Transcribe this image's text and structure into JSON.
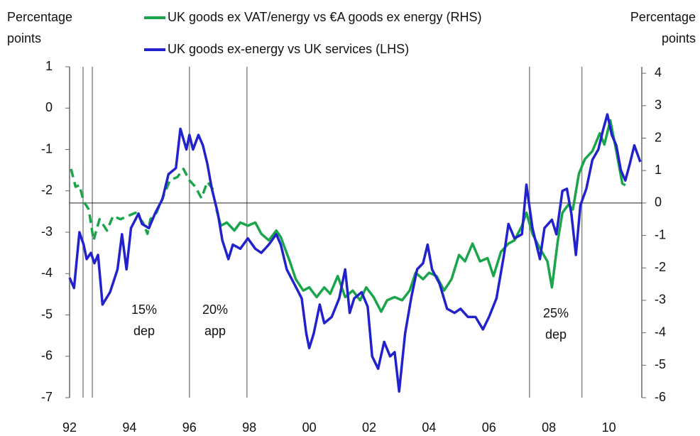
{
  "chart_data": {
    "type": "line",
    "ylabel": [
      "Percentage",
      "points"
    ],
    "y2label": [
      "Percentage",
      "points"
    ],
    "xlim": [
      1992,
      2011.1
    ],
    "xticks": [
      {
        "value": 1992,
        "label": "92"
      },
      {
        "value": 1994,
        "label": "94"
      },
      {
        "value": 1996,
        "label": "96"
      },
      {
        "value": 1998,
        "label": "98"
      },
      {
        "value": 2000,
        "label": "00"
      },
      {
        "value": 2002,
        "label": "02"
      },
      {
        "value": 2004,
        "label": "04"
      },
      {
        "value": 2006,
        "label": "06"
      },
      {
        "value": 2008,
        "label": "08"
      },
      {
        "value": 2010,
        "label": "10"
      }
    ],
    "ylim": [
      -7,
      1
    ],
    "yticks": [
      1,
      0,
      -1,
      -2,
      -3,
      -4,
      -5,
      -6,
      -7
    ],
    "y2lim": [
      -6,
      4.2
    ],
    "y2ticks": [
      4,
      3,
      2,
      1,
      0,
      -1,
      -2,
      -3,
      -4,
      -5,
      -6
    ],
    "vlines": [
      1992.45,
      1992.76,
      1996,
      1997.92,
      2007.35,
      2009.1
    ],
    "annotations": [
      [
        "15%",
        "dep"
      ],
      [
        "20%",
        "app"
      ],
      [
        "25%",
        "dep"
      ]
    ],
    "series": [
      {
        "name": "UK goods ex VAT/energy vs €A goods ex energy (RHS)",
        "color": "#1aa54b",
        "axis": "y2",
        "dashed_before": 1996.85,
        "x": [
          1992.05,
          1992.2,
          1992.33,
          1992.47,
          1992.64,
          1992.8,
          1993.0,
          1993.25,
          1993.45,
          1993.7,
          1993.95,
          1994.2,
          1994.45,
          1994.6,
          1994.7,
          1994.9,
          1995.15,
          1995.35,
          1995.6,
          1995.8,
          1996.0,
          1996.2,
          1996.4,
          1996.6,
          1996.8,
          1996.9,
          1997.05,
          1997.25,
          1997.5,
          1997.7,
          1997.95,
          1998.2,
          1998.4,
          1998.65,
          1998.9,
          1999.05,
          1999.35,
          1999.55,
          1999.8,
          2000.0,
          2000.25,
          2000.5,
          2000.7,
          2000.95,
          2001.2,
          2001.45,
          2001.7,
          2001.9,
          2002.15,
          2002.4,
          2002.6,
          2002.85,
          2003.1,
          2003.35,
          2003.55,
          2003.8,
          2004.0,
          2004.25,
          2004.5,
          2004.75,
          2005.0,
          2005.2,
          2005.45,
          2005.7,
          2005.95,
          2006.15,
          2006.4,
          2006.65,
          2006.85,
          2007.1,
          2007.25,
          2007.45,
          2007.7,
          2007.95,
          2008.1,
          2008.3,
          2008.45,
          2008.65,
          2008.8,
          2009.0,
          2009.2,
          2009.45,
          2009.7,
          2009.85,
          2010.05,
          2010.25,
          2010.45,
          2010.55
        ],
        "values": [
          1.05,
          0.5,
          0.55,
          0.05,
          -0.2,
          -1.15,
          -0.5,
          -0.85,
          -0.4,
          -0.5,
          -0.4,
          -0.3,
          -0.6,
          -0.95,
          -0.5,
          -0.3,
          0.25,
          0.7,
          0.8,
          1.05,
          0.7,
          0.5,
          0.15,
          0.65,
          0.4,
          -0.2,
          -0.7,
          -0.6,
          -0.85,
          -0.6,
          -0.7,
          -0.6,
          -0.95,
          -1.15,
          -0.85,
          -1.05,
          -1.8,
          -2.35,
          -2.7,
          -2.6,
          -2.9,
          -2.6,
          -2.8,
          -2.25,
          -2.9,
          -2.7,
          -3.0,
          -2.6,
          -2.9,
          -3.35,
          -3.0,
          -2.9,
          -3.0,
          -2.7,
          -2.15,
          -2.35,
          -2.15,
          -2.25,
          -2.7,
          -2.35,
          -1.6,
          -1.8,
          -1.25,
          -1.8,
          -1.7,
          -2.25,
          -1.5,
          -1.25,
          -1.15,
          -0.7,
          -0.3,
          -0.95,
          -1.4,
          -1.8,
          -2.6,
          -1.15,
          -0.3,
          -0.05,
          -0.2,
          0.9,
          1.35,
          1.6,
          2.15,
          1.8,
          2.55,
          1.6,
          0.6,
          0.55
        ]
      },
      {
        "name": "UK goods ex-energy vs UK services (LHS)",
        "color": "#2222cc",
        "x": [
          1992.0,
          1992.15,
          1992.33,
          1992.47,
          1992.57,
          1992.71,
          1992.83,
          1992.95,
          1993.1,
          1993.35,
          1993.6,
          1993.75,
          1993.9,
          1994.05,
          1994.3,
          1994.42,
          1994.65,
          1994.85,
          1995.1,
          1995.3,
          1995.55,
          1995.7,
          1995.9,
          1996.0,
          1996.12,
          1996.3,
          1996.45,
          1996.6,
          1996.75,
          1996.95,
          1997.1,
          1997.3,
          1997.45,
          1997.7,
          1997.95,
          1998.2,
          1998.4,
          1998.65,
          1998.9,
          1999.05,
          1999.25,
          1999.5,
          1999.75,
          1999.9,
          2000.0,
          2000.15,
          2000.35,
          2000.5,
          2000.75,
          2001.0,
          2001.2,
          2001.35,
          2001.5,
          2001.75,
          2001.95,
          2002.1,
          2002.3,
          2002.5,
          2002.7,
          2002.85,
          2003.0,
          2003.2,
          2003.4,
          2003.6,
          2003.8,
          2003.95,
          2004.1,
          2004.35,
          2004.6,
          2004.85,
          2005.05,
          2005.3,
          2005.55,
          2005.8,
          2006.0,
          2006.25,
          2006.5,
          2006.65,
          2006.85,
          2007.1,
          2007.25,
          2007.45,
          2007.7,
          2007.85,
          2008.1,
          2008.25,
          2008.45,
          2008.6,
          2008.75,
          2008.9,
          2009.05,
          2009.25,
          2009.45,
          2009.65,
          2009.8,
          2009.95,
          2010.1,
          2010.25,
          2010.4,
          2010.55,
          2010.7,
          2010.85,
          2010.95,
          2011.05
        ],
        "values": [
          -4.1,
          -4.35,
          -3.0,
          -3.3,
          -3.65,
          -3.5,
          -3.75,
          -3.55,
          -4.75,
          -4.45,
          -3.9,
          -3.05,
          -3.9,
          -2.9,
          -2.55,
          -2.8,
          -2.9,
          -2.55,
          -2.2,
          -1.6,
          -1.45,
          -0.5,
          -1.0,
          -0.65,
          -1.0,
          -0.65,
          -0.9,
          -1.35,
          -1.95,
          -2.55,
          -3.2,
          -3.65,
          -3.3,
          -3.4,
          -3.15,
          -3.4,
          -3.5,
          -3.3,
          -3.05,
          -3.3,
          -3.9,
          -4.25,
          -4.6,
          -5.45,
          -5.8,
          -5.45,
          -4.75,
          -5.2,
          -5.05,
          -4.6,
          -3.9,
          -4.95,
          -4.6,
          -4.45,
          -4.8,
          -6.0,
          -6.3,
          -5.65,
          -6.0,
          -5.9,
          -6.85,
          -5.45,
          -4.6,
          -3.9,
          -3.75,
          -3.3,
          -3.9,
          -4.25,
          -4.85,
          -4.95,
          -4.85,
          -5.05,
          -5.05,
          -5.35,
          -5.05,
          -4.6,
          -3.55,
          -2.8,
          -3.15,
          -3.05,
          -1.85,
          -2.9,
          -3.65,
          -2.9,
          -2.7,
          -3.05,
          -2.0,
          -1.95,
          -2.55,
          -3.55,
          -2.35,
          -1.95,
          -1.25,
          -1.0,
          -0.55,
          -0.15,
          -0.65,
          -0.9,
          -1.5,
          -1.75,
          -1.35,
          -0.9,
          -1.1,
          -1.3
        ]
      }
    ]
  }
}
